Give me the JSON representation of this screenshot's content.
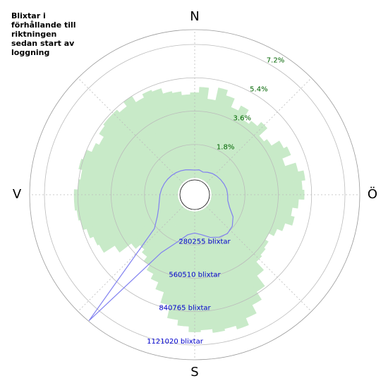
{
  "chart_data": {
    "type": "polar",
    "title": "Blixtar i förhållande till riktningen sedan start av loggning",
    "directions": [
      "N",
      "Ö",
      "S",
      "V"
    ],
    "ylim": [
      0,
      8
    ],
    "yticks": [
      {
        "value": 1.8,
        "label": "1.8%"
      },
      {
        "value": 3.6,
        "label": "3.6%"
      },
      {
        "value": 5.4,
        "label": "5.4%"
      },
      {
        "value": 7.2,
        "label": "7.2%"
      }
    ],
    "y2lim": [
      0,
      1245578
    ],
    "y2ticks": [
      {
        "value": 280255,
        "label": "280255 blixtar"
      },
      {
        "value": 560510,
        "label": "560510 blixtar"
      },
      {
        "value": 840765,
        "label": "840765 blixtar"
      },
      {
        "value": 1121020,
        "label": "1121020 blixtar"
      }
    ],
    "series": [
      {
        "color": "#c8eac8",
        "x": [
          0,
          5,
          10,
          15,
          20,
          25,
          30,
          35,
          40,
          45,
          50,
          55,
          60,
          65,
          70,
          75,
          80,
          85,
          90,
          95,
          100,
          105,
          110,
          115,
          120,
          125,
          130,
          135,
          140,
          145,
          150,
          155,
          160,
          165,
          170,
          175,
          180,
          185,
          190,
          195,
          200,
          205,
          210,
          215,
          220,
          225,
          230,
          235,
          240,
          245,
          250,
          255,
          260,
          265,
          270,
          275,
          280,
          285,
          290,
          295,
          300,
          305,
          310,
          315,
          320,
          325,
          330,
          335,
          340,
          345,
          350,
          355
        ],
        "values": [
          4.6,
          4.9,
          4.3,
          5.0,
          4.7,
          4.2,
          4.5,
          3.9,
          4.1,
          4.4,
          3.8,
          4.0,
          4.5,
          4.7,
          4.2,
          4.8,
          5.1,
          4.9,
          5.0,
          4.7,
          4.4,
          4.6,
          4.2,
          3.9,
          3.6,
          3.8,
          3.9,
          4.0,
          4.6,
          5.3,
          5.8,
          6.3,
          6.7,
          6.5,
          6.6,
          6.4,
          6.5,
          6.2,
          5.9,
          5.2,
          4.6,
          4.2,
          3.9,
          3.6,
          3.3,
          3.1,
          3.4,
          4.2,
          4.9,
          5.0,
          5.2,
          5.4,
          5.5,
          5.6,
          5.6,
          5.4,
          5.3,
          5.5,
          5.4,
          5.1,
          4.9,
          5.2,
          5.3,
          5.3,
          5.1,
          5.4,
          5.0,
          5.2,
          5.1,
          4.8,
          4.7,
          4.5
        ]
      },
      {
        "color": "#8080f0",
        "axis": "y2",
        "x": [
          0,
          10,
          20,
          30,
          40,
          50,
          60,
          70,
          80,
          90,
          100,
          110,
          120,
          130,
          140,
          150,
          160,
          170,
          180,
          190,
          200,
          210,
          220,
          230,
          240,
          250,
          260,
          270,
          280,
          290,
          300,
          310,
          320,
          330,
          340,
          350
        ],
        "values": [
          65000,
          70000,
          60000,
          75000,
          90000,
          100000,
          110000,
          120000,
          130000,
          135000,
          140000,
          170000,
          230000,
          270000,
          285000,
          270000,
          240000,
          200000,
          180000,
          200000,
          280000,
          420000,
          1240000,
          300000,
          220000,
          180000,
          160000,
          150000,
          140000,
          130000,
          120000,
          110000,
          100000,
          90000,
          80000,
          70000
        ]
      }
    ]
  }
}
